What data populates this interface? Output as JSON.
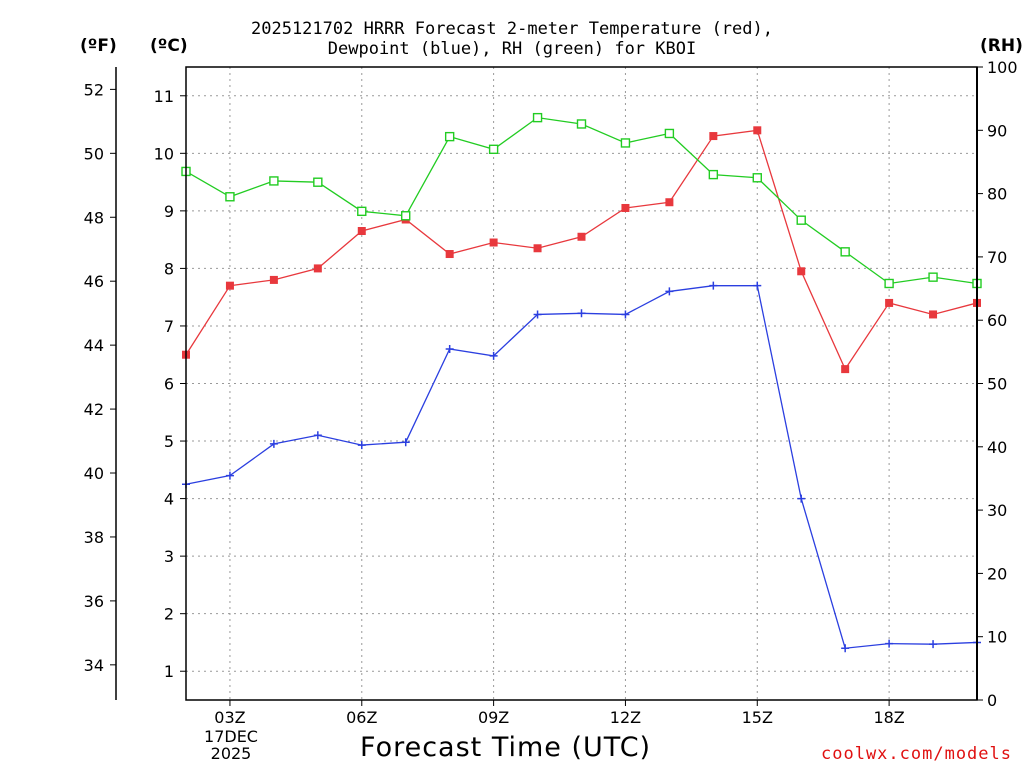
{
  "chart_data": {
    "type": "line",
    "title_line1": "2025121702 HRRR Forecast 2-meter Temperature (red),",
    "title_line2": "Dewpoint (blue), RH (green) for KBOI",
    "xlabel": "Forecast Time (UTC)",
    "axis_units": {
      "fahrenheit": "(ºF)",
      "celsius": "(ºC)",
      "rh": "(RH)"
    },
    "date_label": [
      "17DEC",
      "2025"
    ],
    "credit": "coolwx.com/models",
    "x_hours": [
      2,
      3,
      4,
      5,
      6,
      7,
      8,
      9,
      10,
      11,
      12,
      13,
      14,
      15,
      16,
      17,
      18,
      19,
      20
    ],
    "x_range": [
      2,
      20
    ],
    "x_ticks": [
      {
        "hour": 3,
        "label": "03Z"
      },
      {
        "hour": 6,
        "label": "06Z"
      },
      {
        "hour": 9,
        "label": "09Z"
      },
      {
        "hour": 12,
        "label": "12Z"
      },
      {
        "hour": 15,
        "label": "15Z"
      },
      {
        "hour": 18,
        "label": "18Z"
      }
    ],
    "celsius_range": [
      0.5,
      11.5
    ],
    "celsius_ticks": [
      1,
      2,
      3,
      4,
      5,
      6,
      7,
      8,
      9,
      10,
      11
    ],
    "fahrenheit_ticks": [
      34,
      36,
      38,
      40,
      42,
      44,
      46,
      48,
      50,
      52
    ],
    "rh_range": [
      0,
      100
    ],
    "rh_ticks": [
      0,
      10,
      20,
      30,
      40,
      50,
      60,
      70,
      80,
      90,
      100
    ],
    "series": [
      {
        "name": "2-meter Temperature",
        "unit": "C",
        "color": "#e8383d",
        "marker": "filled-square",
        "values": [
          6.5,
          7.7,
          7.8,
          8.0,
          8.65,
          8.85,
          8.25,
          8.45,
          8.35,
          8.55,
          9.05,
          9.15,
          10.3,
          10.4,
          7.95,
          6.25,
          7.4,
          7.2,
          7.4
        ]
      },
      {
        "name": "Dewpoint",
        "unit": "C",
        "color": "#2b3fe0",
        "marker": "plus",
        "values": [
          4.25,
          4.4,
          4.95,
          5.1,
          4.93,
          4.98,
          6.6,
          6.48,
          7.2,
          7.22,
          7.2,
          7.6,
          7.7,
          7.7,
          4.0,
          1.4,
          1.48,
          1.47,
          1.5
        ]
      },
      {
        "name": "RH",
        "unit": "%",
        "color": "#22cc22",
        "marker": "open-square",
        "values": [
          83.5,
          79.5,
          82,
          81.8,
          77.2,
          76.5,
          89,
          87,
          92,
          91,
          88,
          89.5,
          83,
          82.5,
          75.8,
          70.8,
          65.8,
          66.8,
          65.8
        ]
      }
    ]
  }
}
